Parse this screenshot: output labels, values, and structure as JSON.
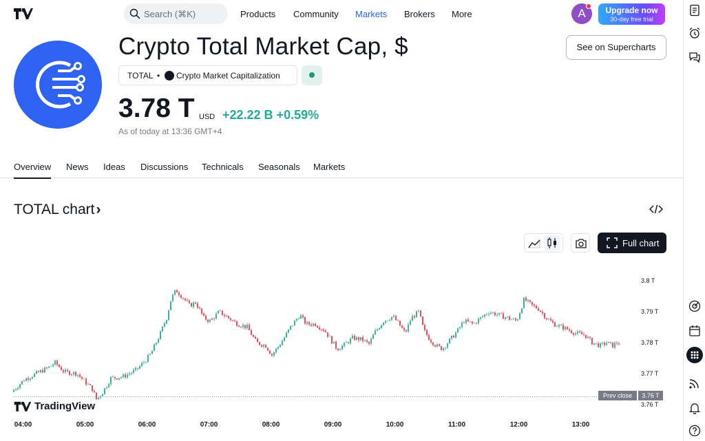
{
  "nav": {
    "search_placeholder": "Search (⌘K)",
    "items": [
      "Products",
      "Community",
      "Markets",
      "Brokers",
      "More"
    ],
    "active": "Markets",
    "avatar_letter": "A",
    "upgrade_title": "Upgrade now",
    "upgrade_subtitle": "30-day free trial"
  },
  "header": {
    "title": "Crypto Total Market Cap, $",
    "ticker": "TOTAL",
    "bullet": "•",
    "exchange": "Crypto Market Capitalization",
    "see_superchart_label": "See on Supercharts",
    "price": "3.78 T",
    "currency": "USD",
    "change": "+22.22 B  +0.59%",
    "as_of": "As of today at 13:36 GMT+4",
    "accent_color": "#2e62f2",
    "positive_color": "#22ab94"
  },
  "tabs": [
    "Overview",
    "News",
    "Ideas",
    "Discussions",
    "Technicals",
    "Seasonals",
    "Markets"
  ],
  "active_tab": "Overview",
  "chart_section": {
    "title": "TOTAL chart",
    "chevron": "›",
    "full_chart_label": "Full chart",
    "watermark": "TradingView",
    "prev_close_label": "Prev close",
    "prev_close_value": "3.76 T",
    "icons": [
      "line-chart-icon",
      "candles-icon",
      "camera-icon",
      "fullscreen-icon",
      "embed-code-icon"
    ]
  },
  "rail_icons": [
    "watchlist-icon",
    "alarm-clock-icon",
    "chat-icon",
    "target-icon",
    "calendar-icon",
    "apps-grid-icon",
    "stream-icon",
    "bell-icon",
    "help-icon"
  ],
  "chart_data": {
    "type": "line",
    "title": "",
    "y_ticks": [
      "3.8 T",
      "3.79 T",
      "3.78 T",
      "3.77 T",
      "3.76 T"
    ],
    "y_tick_values": [
      3.8,
      3.79,
      3.78,
      3.77,
      3.76
    ],
    "x_ticks": [
      "04:00",
      "05:00",
      "06:00",
      "07:00",
      "08:00",
      "09:00",
      "10:00",
      "11:00",
      "12:00",
      "13:00"
    ],
    "x_tick_hours": [
      4,
      5,
      6,
      7,
      8,
      9,
      10,
      11,
      12,
      13
    ],
    "ylim": [
      3.7595,
      3.8045
    ],
    "xlim": [
      3.85,
      13.85
    ],
    "prev_close": 3.7625,
    "up_color": "#22ab94",
    "down_color": "#f23645",
    "points": [
      [
        3.85,
        3.764
      ],
      [
        4.05,
        3.768
      ],
      [
        4.25,
        3.77
      ],
      [
        4.45,
        3.772
      ],
      [
        4.55,
        3.7735
      ],
      [
        4.7,
        3.7705
      ],
      [
        4.9,
        3.77
      ],
      [
        5.05,
        3.767
      ],
      [
        5.15,
        3.765
      ],
      [
        5.22,
        3.7615
      ],
      [
        5.32,
        3.764
      ],
      [
        5.45,
        3.7685
      ],
      [
        5.65,
        3.769
      ],
      [
        5.85,
        3.771
      ],
      [
        6.0,
        3.774
      ],
      [
        6.1,
        3.7765
      ],
      [
        6.25,
        3.783
      ],
      [
        6.35,
        3.788
      ],
      [
        6.42,
        3.794
      ],
      [
        6.5,
        3.797
      ],
      [
        6.62,
        3.7945
      ],
      [
        6.72,
        3.792
      ],
      [
        6.82,
        3.793
      ],
      [
        6.95,
        3.788
      ],
      [
        7.05,
        3.787
      ],
      [
        7.2,
        3.79
      ],
      [
        7.35,
        3.788
      ],
      [
        7.5,
        3.786
      ],
      [
        7.65,
        3.785
      ],
      [
        7.8,
        3.78
      ],
      [
        7.95,
        3.779
      ],
      [
        8.05,
        3.776
      ],
      [
        8.2,
        3.78
      ],
      [
        8.35,
        3.785
      ],
      [
        8.5,
        3.789
      ],
      [
        8.6,
        3.786
      ],
      [
        8.75,
        3.786
      ],
      [
        8.9,
        3.784
      ],
      [
        9.0,
        3.781
      ],
      [
        9.1,
        3.778
      ],
      [
        9.2,
        3.779
      ],
      [
        9.35,
        3.7815
      ],
      [
        9.5,
        3.781
      ],
      [
        9.62,
        3.7795
      ],
      [
        9.7,
        3.783
      ],
      [
        9.85,
        3.787
      ],
      [
        10.0,
        3.7885
      ],
      [
        10.1,
        3.786
      ],
      [
        10.2,
        3.783
      ],
      [
        10.3,
        3.788
      ],
      [
        10.42,
        3.79
      ],
      [
        10.5,
        3.784
      ],
      [
        10.6,
        3.781
      ],
      [
        10.7,
        3.779
      ],
      [
        10.8,
        3.778
      ],
      [
        10.95,
        3.7815
      ],
      [
        11.05,
        3.784
      ],
      [
        11.15,
        3.787
      ],
      [
        11.3,
        3.786
      ],
      [
        11.42,
        3.788
      ],
      [
        11.55,
        3.79
      ],
      [
        11.7,
        3.789
      ],
      [
        11.85,
        3.788
      ],
      [
        12.0,
        3.787
      ],
      [
        12.12,
        3.794
      ],
      [
        12.25,
        3.792
      ],
      [
        12.35,
        3.791
      ],
      [
        12.48,
        3.788
      ],
      [
        12.6,
        3.786
      ],
      [
        12.8,
        3.7845
      ],
      [
        12.95,
        3.783
      ],
      [
        13.1,
        3.7825
      ],
      [
        13.22,
        3.78
      ],
      [
        13.35,
        3.779
      ],
      [
        13.45,
        3.78
      ],
      [
        13.55,
        3.779
      ],
      [
        13.62,
        3.78
      ]
    ]
  }
}
